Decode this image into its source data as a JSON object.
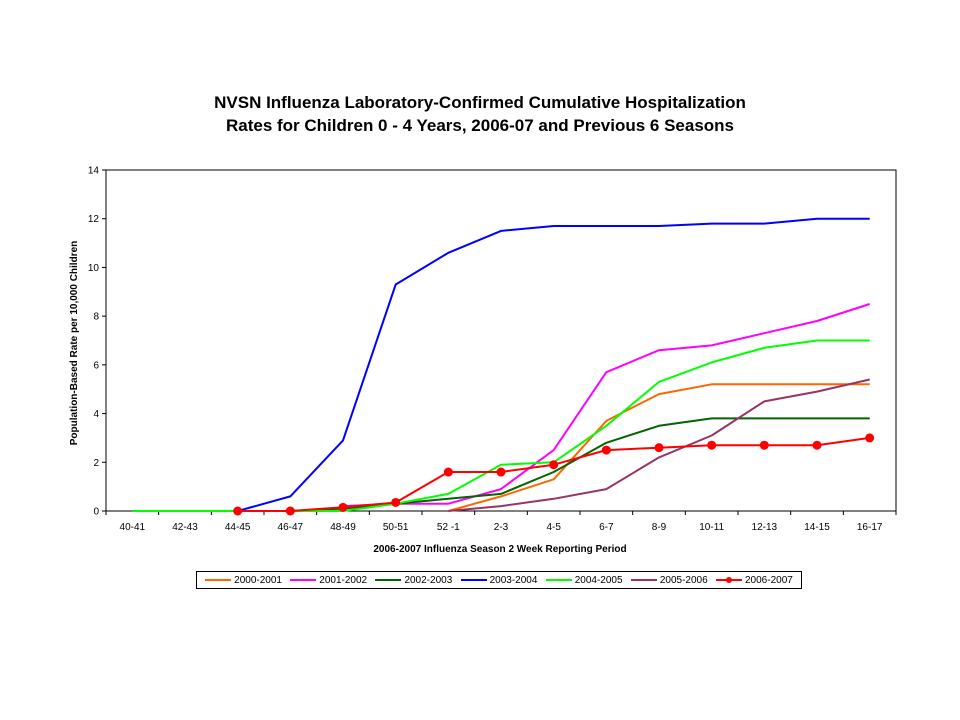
{
  "chart_data": {
    "type": "line",
    "title_line1": "NVSN Influenza Laboratory-Confirmed Cumulative Hospitalization",
    "title_line2": "Rates for Children 0 - 4 Years, 2006-07 and Previous 6 Seasons",
    "xlabel": "2006-2007 Influenza Season 2 Week Reporting Period",
    "ylabel": "Population-Based Rate per 10,000 Children",
    "ylim": [
      0,
      14
    ],
    "yticks": [
      0,
      2,
      4,
      6,
      8,
      10,
      12,
      14
    ],
    "grid": false,
    "legend_position": "bottom",
    "categories": [
      "40-41",
      "42-43",
      "44-45",
      "46-47",
      "48-49",
      "50-51",
      "52 -1",
      "2-3",
      "4-5",
      "6-7",
      "8-9",
      "10-11",
      "12-13",
      "14-15",
      "16-17"
    ],
    "series": [
      {
        "name": "2000-2001",
        "color": "#ff6600",
        "marker": false,
        "values": [
          null,
          null,
          null,
          null,
          null,
          null,
          0.0,
          0.6,
          1.3,
          3.7,
          4.8,
          5.2,
          5.2,
          5.2,
          5.2
        ]
      },
      {
        "name": "2001-2002",
        "color": "#ff00ff",
        "marker": false,
        "values": [
          null,
          null,
          null,
          null,
          0.2,
          0.3,
          0.3,
          0.9,
          2.5,
          5.7,
          6.6,
          6.8,
          7.3,
          7.8,
          8.5
        ]
      },
      {
        "name": "2002-2003",
        "color": "#006600",
        "marker": false,
        "values": [
          null,
          null,
          null,
          0.0,
          0.1,
          0.3,
          0.5,
          0.7,
          1.6,
          2.8,
          3.5,
          3.8,
          3.8,
          3.8,
          3.8
        ]
      },
      {
        "name": "2003-2004",
        "color": "#0000ff",
        "marker": false,
        "values": [
          null,
          null,
          0.0,
          0.6,
          2.9,
          9.3,
          10.6,
          11.5,
          11.7,
          11.7,
          11.7,
          11.8,
          11.8,
          12.0,
          12.0
        ]
      },
      {
        "name": "2004-2005",
        "color": "#00ff00",
        "marker": false,
        "values": [
          0.0,
          0.0,
          0.0,
          0.0,
          0.0,
          0.3,
          0.7,
          1.9,
          2.0,
          3.5,
          5.3,
          6.1,
          6.7,
          7.0,
          7.0
        ]
      },
      {
        "name": "2005-2006",
        "color": "#993366",
        "marker": false,
        "values": [
          null,
          null,
          null,
          null,
          null,
          null,
          0.0,
          0.2,
          0.5,
          0.9,
          2.2,
          3.1,
          4.5,
          4.9,
          5.4
        ]
      },
      {
        "name": "2006-2007",
        "color": "#ff0000",
        "marker": true,
        "values": [
          null,
          null,
          0.0,
          0.0,
          0.15,
          0.35,
          1.6,
          1.6,
          1.9,
          2.5,
          2.6,
          2.7,
          2.7,
          2.7,
          3.0
        ]
      }
    ]
  }
}
